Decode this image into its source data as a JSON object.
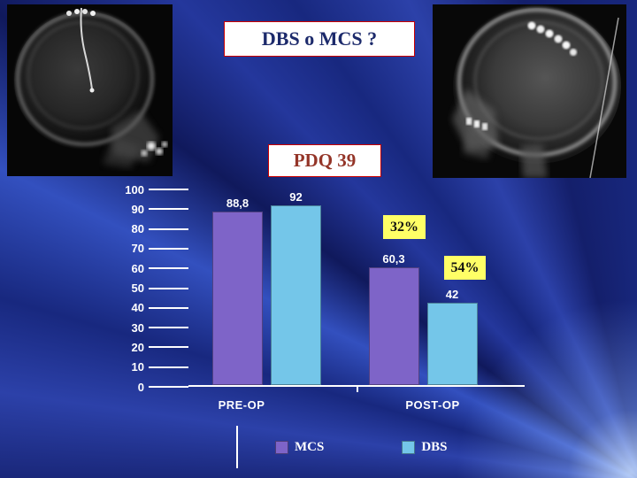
{
  "slide": {
    "title": "DBS o MCS ?",
    "scale_label": "PDQ 39"
  },
  "figures": {
    "left_xray": "lateral skull x-ray with electrode lead",
    "right_xray": "lateral skull x-ray with electrode screw row"
  },
  "colors": {
    "background": "#18287f",
    "box_border": "#cc0000",
    "title_text": "#1c2a6b",
    "scale_text": "#943528",
    "annotation_bg": "#ffff66",
    "chart_text": "#ffffff"
  },
  "chart_data": {
    "type": "bar",
    "title": "",
    "categories": [
      "PRE-OP",
      "POST-OP"
    ],
    "series": [
      {
        "name": "MCS",
        "color": "#7e64c8",
        "values": [
          88.8,
          60.3
        ],
        "value_labels": [
          "88,8",
          "60,3"
        ]
      },
      {
        "name": "DBS",
        "color": "#74c6e9",
        "values": [
          92,
          42
        ],
        "value_labels": [
          "92",
          "42"
        ]
      }
    ],
    "ylim": [
      0,
      100
    ],
    "yticks": [
      100,
      90,
      80,
      70,
      60,
      50,
      40,
      30,
      20,
      10,
      0
    ],
    "legend": {
      "position": "bottom",
      "entries": [
        "MCS",
        "DBS"
      ]
    },
    "annotations": [
      {
        "text": "32%"
      },
      {
        "text": "54%"
      }
    ]
  }
}
